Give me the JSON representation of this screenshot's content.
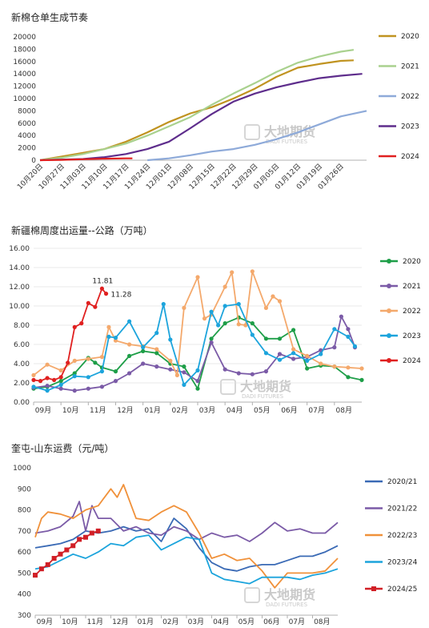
{
  "watermark": {
    "text": "大地期货",
    "sub": "DADI FUTURES"
  },
  "chart_data": [
    {
      "type": "line",
      "title": "新棉仓单生成节奏",
      "xlabel": "",
      "ylabel": "",
      "ylim": [
        0,
        20000
      ],
      "y_ticks": [
        0,
        2000,
        4000,
        6000,
        8000,
        10000,
        12000,
        14000,
        16000,
        18000,
        20000
      ],
      "x_ticks": [
        "10月20日",
        "10月27日",
        "11月03日",
        "11月10日",
        "11月17日",
        "11月24日",
        "12月01日",
        "12月08日",
        "12月15日",
        "12月22日",
        "12月29日",
        "01月05日",
        "01月12日",
        "01月19日",
        "01月26日"
      ],
      "x_range": [
        0,
        15.2
      ],
      "grid": false,
      "legend": "right",
      "series": [
        {
          "name": "2020",
          "color": "#c09320",
          "x": [
            0,
            1,
            2,
            3,
            4,
            5,
            6,
            7,
            8,
            9,
            10,
            11,
            12,
            13,
            14,
            14.6
          ],
          "values": [
            0,
            600,
            1200,
            1800,
            3000,
            4500,
            6200,
            7600,
            8600,
            10000,
            11600,
            13500,
            15000,
            15600,
            16100,
            16200
          ]
        },
        {
          "name": "2021",
          "color": "#a9d18e",
          "x": [
            0,
            1,
            2,
            3,
            4,
            5,
            6,
            7,
            8,
            9,
            10,
            11,
            12,
            13,
            14,
            14.6
          ],
          "values": [
            0,
            400,
            1000,
            1800,
            2700,
            4000,
            5500,
            7000,
            9000,
            10800,
            12500,
            14300,
            15800,
            16800,
            17600,
            17900
          ]
        },
        {
          "name": "2022",
          "color": "#8eaad9",
          "x": [
            5,
            6,
            7,
            8,
            9,
            10,
            11,
            12,
            13,
            14,
            15.2
          ],
          "values": [
            0,
            300,
            800,
            1400,
            1800,
            2500,
            3400,
            4500,
            5800,
            7100,
            8000
          ]
        },
        {
          "name": "2023",
          "color": "#5e2d8c",
          "x": [
            0,
            1,
            2,
            3,
            4,
            5,
            6,
            7,
            8,
            9,
            10,
            11,
            12,
            13,
            14,
            15
          ],
          "values": [
            0,
            100,
            200,
            500,
            1000,
            1800,
            3000,
            5200,
            7500,
            9500,
            10800,
            11800,
            12600,
            13300,
            13700,
            14000
          ]
        },
        {
          "name": "2024",
          "color": "#e02020",
          "x": [
            0,
            1,
            2,
            3,
            4,
            4.3
          ],
          "values": [
            0,
            50,
            150,
            250,
            300,
            300
          ]
        }
      ]
    },
    {
      "type": "line",
      "title": "新疆棉周度出运量--公路（万吨）",
      "xlabel": "",
      "ylabel": "",
      "ylim": [
        0,
        16
      ],
      "y_ticks": [
        "0.00",
        "2.00",
        "4.00",
        "6.00",
        "8.00",
        "10.00",
        "12.00",
        "14.00",
        "16.00"
      ],
      "x_ticks": [
        "09月",
        "10月",
        "11月",
        "12月",
        "01月",
        "02月",
        "03月",
        "04月",
        "05月",
        "06月",
        "07月",
        "08月"
      ],
      "x_range": [
        0,
        48
      ],
      "grid": true,
      "legend": "right",
      "annotations": [
        "11.81",
        "11.28"
      ],
      "series": [
        {
          "name": "2020",
          "color": "#1e9e48",
          "x": [
            0,
            2,
            4,
            6,
            8,
            9,
            10,
            12,
            14,
            16,
            18,
            20,
            22,
            24,
            26,
            28,
            30,
            32,
            34,
            36,
            38,
            40,
            42,
            44,
            46,
            48
          ],
          "values": [
            1.4,
            1.6,
            2.2,
            3.0,
            4.6,
            4.1,
            3.6,
            3.2,
            4.8,
            5.3,
            5.1,
            4.0,
            3.7,
            1.4,
            6.6,
            8.2,
            8.8,
            8.2,
            6.6,
            6.6,
            7.5,
            3.5,
            3.8,
            3.7,
            2.6,
            2.3
          ]
        },
        {
          "name": "2021",
          "color": "#7b5ba7",
          "x": [
            0,
            2,
            4,
            6,
            8,
            10,
            12,
            14,
            16,
            18,
            20,
            22,
            24,
            26,
            28,
            30,
            32,
            34,
            36,
            38,
            40,
            42,
            44,
            45,
            46,
            47
          ],
          "values": [
            1.5,
            1.7,
            1.4,
            1.2,
            1.4,
            1.6,
            2.2,
            3.0,
            4.0,
            3.7,
            3.4,
            3.1,
            2.2,
            6.2,
            3.4,
            3.0,
            2.9,
            3.2,
            5.0,
            4.5,
            4.7,
            5.4,
            5.7,
            8.9,
            7.6,
            5.7
          ]
        },
        {
          "name": "2022",
          "color": "#f4a96c",
          "x": [
            0,
            2,
            4,
            6,
            8,
            10,
            11,
            12,
            14,
            16,
            18,
            20,
            21,
            22,
            24,
            25,
            26,
            28,
            29,
            30,
            31,
            32,
            34,
            35,
            36,
            38,
            40,
            42,
            44,
            46,
            48
          ],
          "values": [
            2.8,
            3.9,
            3.3,
            4.3,
            4.5,
            4.7,
            7.8,
            6.4,
            6.0,
            5.8,
            5.5,
            4.3,
            2.8,
            9.8,
            13.0,
            8.7,
            9.1,
            12.0,
            13.5,
            8.1,
            8.0,
            13.6,
            9.8,
            11.0,
            10.5,
            5.5,
            4.8,
            4.0,
            3.7,
            3.6,
            3.5
          ]
        },
        {
          "name": "2023",
          "color": "#1ca4dc",
          "x": [
            0,
            2,
            4,
            6,
            8,
            10,
            11,
            12,
            14,
            16,
            18,
            19,
            20,
            22,
            24,
            26,
            27,
            28,
            30,
            32,
            34,
            36,
            38,
            40,
            42,
            44,
            46,
            47
          ],
          "values": [
            1.6,
            1.2,
            1.8,
            2.7,
            2.6,
            3.2,
            6.8,
            6.7,
            8.4,
            5.7,
            7.2,
            10.2,
            6.5,
            1.8,
            3.3,
            9.4,
            8.0,
            10.0,
            10.2,
            7.0,
            5.1,
            4.4,
            5.1,
            4.3,
            5.0,
            7.6,
            6.8,
            5.8
          ]
        },
        {
          "name": "2024",
          "color": "#e02020",
          "x": [
            0,
            1,
            2,
            3,
            4,
            5,
            6,
            7,
            8,
            9,
            10,
            10.6
          ],
          "values": [
            2.3,
            2.2,
            2.5,
            2.3,
            2.6,
            4.1,
            7.8,
            8.2,
            10.3,
            9.9,
            11.81,
            11.28
          ]
        }
      ]
    },
    {
      "type": "line",
      "title": "奎屯-山东运费（元/吨）",
      "xlabel": "",
      "ylabel": "",
      "ylim": [
        300,
        1000
      ],
      "y_ticks": [
        300,
        400,
        500,
        600,
        700,
        800,
        900,
        1000
      ],
      "x_ticks": [
        "09月",
        "10月",
        "11月",
        "12月",
        "01月",
        "02月",
        "03月",
        "04月",
        "05月",
        "06月",
        "07月",
        "08月"
      ],
      "x_range": [
        0,
        48
      ],
      "grid": false,
      "legend": "right",
      "series": [
        {
          "name": "2020/21",
          "color": "#3a6ab5",
          "x": [
            0,
            2,
            4,
            6,
            8,
            10,
            12,
            14,
            16,
            18,
            20,
            22,
            24,
            26,
            28,
            30,
            32,
            34,
            36,
            38,
            40,
            42,
            44,
            46,
            48
          ],
          "values": [
            620,
            630,
            640,
            660,
            700,
            690,
            700,
            720,
            700,
            710,
            650,
            760,
            710,
            620,
            550,
            520,
            510,
            530,
            540,
            540,
            560,
            580,
            580,
            600,
            630
          ]
        },
        {
          "name": "2021/22",
          "color": "#7b5ba7",
          "x": [
            0,
            2,
            4,
            6,
            7,
            8,
            9,
            10,
            12,
            14,
            16,
            18,
            20,
            22,
            24,
            26,
            28,
            30,
            32,
            34,
            36,
            38,
            40,
            42,
            44,
            46,
            48
          ],
          "values": [
            690,
            700,
            720,
            770,
            840,
            700,
            820,
            760,
            760,
            700,
            720,
            690,
            680,
            720,
            700,
            660,
            690,
            670,
            680,
            650,
            690,
            740,
            700,
            710,
            690,
            690,
            740
          ]
        },
        {
          "name": "2022/23",
          "color": "#f0913a",
          "x": [
            0,
            1,
            2,
            4,
            6,
            8,
            10,
            12,
            13,
            14,
            16,
            18,
            20,
            22,
            24,
            26,
            28,
            30,
            32,
            34,
            36,
            38,
            40,
            42,
            44,
            46,
            48
          ],
          "values": [
            670,
            760,
            790,
            780,
            760,
            800,
            820,
            900,
            860,
            920,
            760,
            750,
            790,
            820,
            790,
            690,
            570,
            590,
            560,
            570,
            510,
            430,
            500,
            500,
            500,
            510,
            570
          ]
        },
        {
          "name": "2023/24",
          "color": "#1ca4dc",
          "x": [
            0,
            2,
            4,
            6,
            8,
            10,
            12,
            14,
            16,
            18,
            20,
            22,
            24,
            26,
            28,
            30,
            32,
            34,
            36,
            38,
            40,
            42,
            44,
            46,
            48
          ],
          "values": [
            520,
            530,
            560,
            590,
            570,
            600,
            640,
            630,
            670,
            680,
            610,
            640,
            670,
            660,
            500,
            470,
            460,
            450,
            480,
            480,
            480,
            470,
            490,
            500,
            520
          ]
        },
        {
          "name": "2024/25",
          "color": "#d11f26",
          "x": [
            0,
            1,
            2,
            3,
            4,
            5,
            6,
            7,
            8,
            9,
            10
          ],
          "values": [
            490,
            520,
            540,
            570,
            590,
            610,
            630,
            660,
            670,
            690,
            700
          ]
        }
      ]
    }
  ]
}
